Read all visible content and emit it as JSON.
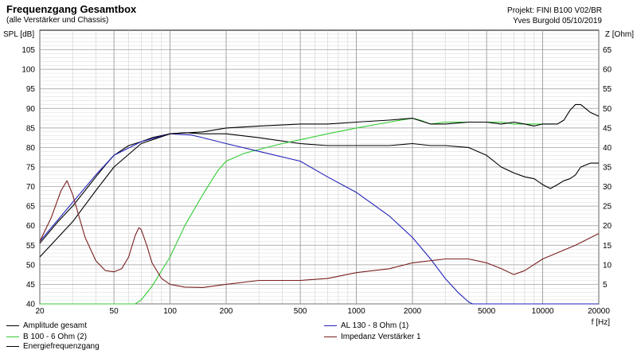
{
  "header": {
    "title": "Frequenzgang Gesamtbox",
    "subtitle": "(alle Verstärker und Chassis)",
    "project": "Projekt: FINI B100 V02/BR",
    "author": "Yves Burgold 05/10/2019"
  },
  "chart_data": {
    "type": "line",
    "x_scale": "log",
    "xlim": [
      20,
      20000
    ],
    "ylim": [
      40,
      110
    ],
    "y2lim": [
      0,
      70
    ],
    "ylabel": "SPL [dB]",
    "y2label": "Z [Ohm]",
    "xlabel": "f [Hz]",
    "x_ticks": [
      20,
      50,
      100,
      200,
      500,
      1000,
      2000,
      5000,
      10000,
      20000
    ],
    "x_tick_labels": [
      "20",
      "50",
      "100",
      "200",
      "500",
      "1000",
      "2000",
      "5000",
      "10000",
      "20000"
    ],
    "y_ticks": [
      40,
      45,
      50,
      55,
      60,
      65,
      70,
      75,
      80,
      85,
      90,
      95,
      100,
      105
    ],
    "y_tick_labels": [
      "40",
      "45",
      "50",
      "55",
      "60",
      "65",
      "70",
      "75",
      "80",
      "85",
      "90",
      "95",
      "100",
      "105"
    ],
    "y2_ticks": [
      5,
      10,
      15,
      20,
      25,
      30,
      35,
      40,
      45,
      50,
      55,
      60,
      65
    ],
    "y2_tick_labels": [
      "5",
      "10",
      "15",
      "20",
      "25",
      "30",
      "35",
      "40",
      "45",
      "50",
      "55",
      "60",
      "65"
    ],
    "grid": true,
    "legend_position": "bottom",
    "series": [
      {
        "name": "Amplitude gesamt",
        "color": "#000000",
        "axis": "left",
        "x": [
          20,
          25,
          30,
          35,
          40,
          45,
          50,
          60,
          70,
          80,
          100,
          120,
          150,
          200,
          300,
          500,
          700,
          1000,
          1500,
          2000,
          2500,
          3000,
          4000,
          5000,
          6000,
          7000,
          8000,
          9000,
          10000,
          11000,
          12000,
          13000,
          14000,
          15000,
          16000,
          18000,
          20000
        ],
        "y": [
          55.5,
          61,
          65,
          69,
          72.5,
          75.5,
          78,
          80.5,
          81.5,
          82.5,
          83.5,
          83.8,
          83.5,
          83.5,
          82.5,
          81,
          80.5,
          80.5,
          80.5,
          81,
          80.5,
          80.5,
          80,
          78,
          75,
          73.5,
          72.5,
          72,
          70.5,
          69.5,
          70.5,
          71.5,
          72,
          73,
          75,
          76,
          76
        ]
      },
      {
        "name": "B 100 - 6 Ohm (2)",
        "color": "#33cc33",
        "axis": "left",
        "x": [
          20,
          50,
          65,
          70,
          80,
          100,
          120,
          150,
          180,
          200,
          250,
          300,
          400,
          500,
          700,
          1000,
          1500,
          2000,
          2200,
          2500,
          3000,
          4000,
          5000,
          6000,
          7000,
          8000,
          10000,
          12000
        ],
        "y": [
          40,
          40,
          40,
          41,
          44.5,
          52,
          60,
          68,
          74,
          76.5,
          78.5,
          79.5,
          81,
          82,
          83.5,
          85,
          86.5,
          87.5,
          87,
          86,
          86.5,
          86.5,
          86.5,
          86.5,
          86,
          86,
          86,
          86
        ]
      },
      {
        "name": "AL 130 - 8 Ohm (1)",
        "color": "#2222bb",
        "axis": "left",
        "x": [
          20,
          40,
          50,
          70,
          100,
          130,
          150,
          200,
          300,
          500,
          700,
          1000,
          1500,
          2000,
          2500,
          3000,
          3500,
          4000,
          4200,
          20000
        ],
        "y": [
          56,
          73,
          78,
          81.5,
          83.5,
          83.2,
          82.5,
          81,
          79,
          76.5,
          72.5,
          68.5,
          62.5,
          57,
          51.5,
          46.5,
          43,
          40.5,
          40,
          40
        ]
      },
      {
        "name": "Energiefrequenzgang",
        "color": "#000000",
        "axis": "left",
        "x": [
          20,
          30,
          40,
          50,
          70,
          100,
          150,
          200,
          300,
          500,
          700,
          1000,
          1500,
          2000,
          2500,
          3000,
          4000,
          5000,
          6000,
          7000,
          8000,
          9000,
          10000,
          11000,
          12000,
          13000,
          14000,
          15000,
          16000,
          18000,
          20000
        ],
        "y": [
          52,
          61,
          69,
          75,
          81,
          83.5,
          84,
          85,
          85.5,
          86,
          86,
          86.5,
          87,
          87.5,
          86,
          86,
          86.5,
          86.5,
          86,
          86.5,
          86,
          85.5,
          86,
          86,
          86,
          87,
          89.5,
          91,
          91,
          89,
          88
        ]
      },
      {
        "name": "Impedanz Verstärker 1",
        "color": "#7a1f1f",
        "axis": "right",
        "x": [
          20,
          23,
          26,
          28,
          30,
          35,
          40,
          45,
          50,
          55,
          60,
          65,
          68,
          70,
          75,
          80,
          90,
          100,
          120,
          150,
          200,
          300,
          500,
          700,
          1000,
          1500,
          2000,
          3000,
          4000,
          5000,
          6000,
          7000,
          8000,
          10000,
          15000,
          20000
        ],
        "y": [
          16,
          22,
          29,
          31.5,
          28,
          17,
          11,
          8.5,
          8.2,
          9,
          12,
          17.5,
          19.5,
          19,
          15,
          10.5,
          6.5,
          5,
          4.3,
          4.2,
          5,
          6,
          6,
          6.5,
          8,
          9,
          10.5,
          11.5,
          11.5,
          10.5,
          9,
          7.5,
          8.5,
          11.5,
          15,
          18
        ]
      }
    ]
  }
}
